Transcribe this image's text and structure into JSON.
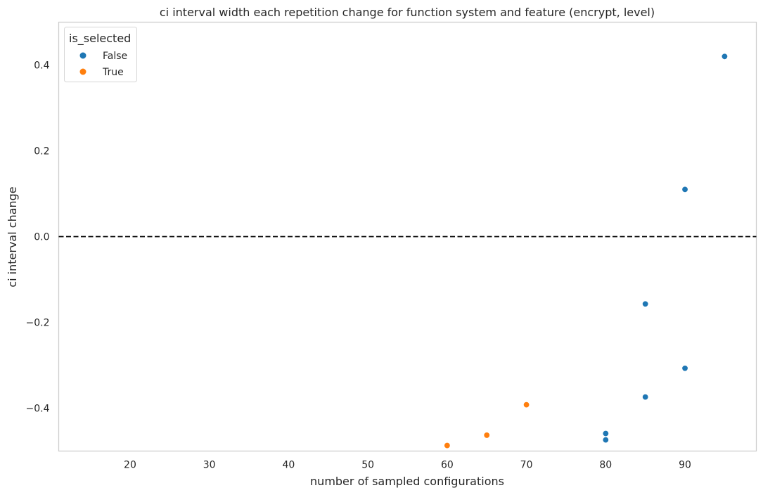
{
  "chart_data": {
    "type": "scatter",
    "title": "ci interval width each repetition change for function system and feature (encrypt, level)",
    "xlabel": "number of sampled configurations",
    "ylabel": "ci interval change",
    "xlim": [
      11,
      99
    ],
    "ylim": [
      -0.5,
      0.5
    ],
    "xticks": [
      "20",
      "30",
      "40",
      "50",
      "60",
      "70",
      "80",
      "90"
    ],
    "yticks": [
      "0.4",
      "0.2",
      "0.0",
      "−0.2",
      "−0.4"
    ],
    "xtick_values": [
      20,
      30,
      40,
      50,
      60,
      70,
      80,
      90
    ],
    "ytick_values": [
      0.4,
      0.2,
      0.0,
      -0.2,
      -0.4
    ],
    "grid": false,
    "reference_line": {
      "y": 0.0,
      "style": "dashed",
      "color": "#000000"
    },
    "legend": {
      "title": "is_selected",
      "placement": "top-left"
    },
    "series": [
      {
        "name": "False",
        "color": "#1f77b4",
        "points": [
          {
            "x": 95,
            "y": 0.42
          },
          {
            "x": 90,
            "y": 0.11
          },
          {
            "x": 85,
            "y": -0.157
          },
          {
            "x": 90,
            "y": -0.307
          },
          {
            "x": 85,
            "y": -0.374
          },
          {
            "x": 80,
            "y": -0.459
          },
          {
            "x": 80,
            "y": -0.474
          }
        ]
      },
      {
        "name": "True",
        "color": "#ff7f0e",
        "points": [
          {
            "x": 70,
            "y": -0.392
          },
          {
            "x": 65,
            "y": -0.463
          },
          {
            "x": 60,
            "y": -0.487
          }
        ]
      }
    ]
  }
}
